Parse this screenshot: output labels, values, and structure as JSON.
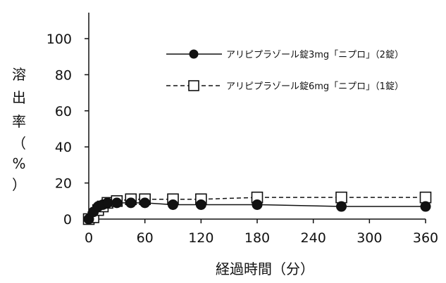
{
  "chart_data": {
    "type": "line",
    "title": "",
    "xlabel": "経過時間（分）",
    "ylabel": [
      "溶",
      "出",
      "率",
      "（",
      "%",
      "）"
    ],
    "xlim": [
      0,
      360
    ],
    "ylim": [
      0,
      100
    ],
    "x_ticks": [
      0,
      60,
      120,
      180,
      240,
      300,
      360
    ],
    "y_ticks": [
      0,
      20,
      40,
      60,
      80,
      100
    ],
    "grid": false,
    "legend_position": "top-right",
    "series": [
      {
        "name": "アリピプラゾール錠3mg「ニプロ」（2錠）",
        "marker": "filled-circle",
        "line_style": "solid",
        "x": [
          0,
          5,
          10,
          15,
          20,
          30,
          45,
          60,
          90,
          120,
          180,
          270,
          360
        ],
        "y": [
          0,
          4,
          7,
          8,
          9,
          9,
          9,
          9,
          8,
          8,
          8,
          7,
          7
        ]
      },
      {
        "name": "アリピプラゾール錠6mg「ニプロ」（1錠）",
        "marker": "open-square",
        "line_style": "dashed",
        "x": [
          0,
          5,
          10,
          15,
          20,
          30,
          45,
          60,
          90,
          120,
          180,
          270,
          360
        ],
        "y": [
          0,
          1,
          5,
          7,
          9,
          10,
          11,
          11,
          11,
          11,
          12,
          12,
          12
        ]
      }
    ]
  }
}
